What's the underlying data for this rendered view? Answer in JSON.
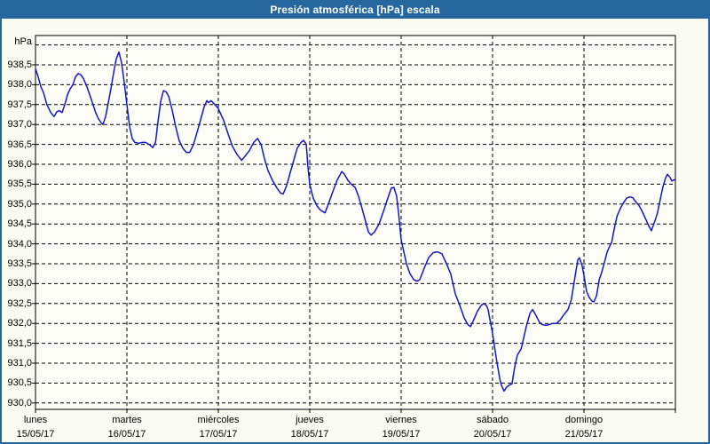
{
  "window": {
    "title": "Presión atmosférica [hPa] escala"
  },
  "colors": {
    "titlebar_bg": "#26689E",
    "titlebar_text": "#FFFFFF",
    "window_border": "#26689E",
    "page_bg": "#FAFBF2",
    "plot_bg": "#FDFDF8",
    "grid": "#000000",
    "axis_text": "#000000",
    "line": "#1717C2"
  },
  "chart_data": {
    "type": "line",
    "title": "Presión atmosférica [hPa] escala",
    "y_unit": "hPa",
    "xlabel": "",
    "ylabel": "hPa",
    "ylim": [
      930.0,
      939.0
    ],
    "y_tick_step": 0.5,
    "grid": true,
    "legend": false,
    "x_range_hours": [
      0,
      168
    ],
    "y_ticks": [
      {
        "v": 938.5,
        "label": "938,5"
      },
      {
        "v": 938.0,
        "label": "938,0"
      },
      {
        "v": 937.5,
        "label": "937,5"
      },
      {
        "v": 937.0,
        "label": "937,0"
      },
      {
        "v": 936.5,
        "label": "936,5"
      },
      {
        "v": 936.0,
        "label": "936,0"
      },
      {
        "v": 935.5,
        "label": "935,5"
      },
      {
        "v": 935.0,
        "label": "935,0"
      },
      {
        "v": 934.5,
        "label": "934,5"
      },
      {
        "v": 934.0,
        "label": "934,0"
      },
      {
        "v": 933.5,
        "label": "933,5"
      },
      {
        "v": 933.0,
        "label": "933,0"
      },
      {
        "v": 932.5,
        "label": "932,5"
      },
      {
        "v": 932.0,
        "label": "932,0"
      },
      {
        "v": 931.5,
        "label": "931,5"
      },
      {
        "v": 931.0,
        "label": "931,0"
      },
      {
        "v": 930.5,
        "label": "930,5"
      },
      {
        "v": 930.0,
        "label": "930,0"
      }
    ],
    "x_days": [
      {
        "name": "lunes",
        "date": "15/05/17"
      },
      {
        "name": "martes",
        "date": "16/05/17"
      },
      {
        "name": "miércoles",
        "date": "17/05/17"
      },
      {
        "name": "jueves",
        "date": "18/05/17"
      },
      {
        "name": "viernes",
        "date": "19/05/17"
      },
      {
        "name": "sábado",
        "date": "20/05/17"
      },
      {
        "name": "domingo",
        "date": "21/05/17"
      }
    ],
    "series": [
      {
        "name": "Presión atmosférica",
        "color": "#1717C2",
        "points": [
          [
            0,
            938.4
          ],
          [
            0.7,
            938.2
          ],
          [
            1.4,
            937.95
          ],
          [
            2.1,
            937.8
          ],
          [
            3,
            937.5
          ],
          [
            4,
            937.3
          ],
          [
            4.9,
            937.2
          ],
          [
            5.6,
            937.32
          ],
          [
            6.3,
            937.35
          ],
          [
            7,
            937.3
          ],
          [
            7.7,
            937.5
          ],
          [
            8.4,
            937.75
          ],
          [
            9.1,
            937.9
          ],
          [
            9.8,
            938.0
          ],
          [
            10.5,
            938.2
          ],
          [
            11.2,
            938.28
          ],
          [
            11.9,
            938.25
          ],
          [
            12.6,
            938.15
          ],
          [
            13.5,
            937.95
          ],
          [
            14.4,
            937.7
          ],
          [
            15.1,
            937.5
          ],
          [
            15.8,
            937.3
          ],
          [
            16.5,
            937.15
          ],
          [
            17.2,
            937.05
          ],
          [
            17.7,
            937.0
          ],
          [
            18.4,
            937.2
          ],
          [
            19.1,
            937.55
          ],
          [
            19.8,
            937.9
          ],
          [
            20.5,
            938.3
          ],
          [
            21.2,
            938.65
          ],
          [
            21.9,
            938.82
          ],
          [
            22.6,
            938.55
          ],
          [
            23.3,
            938.05
          ],
          [
            24,
            937.5
          ],
          [
            24.7,
            936.95
          ],
          [
            25.4,
            936.65
          ],
          [
            26.1,
            936.55
          ],
          [
            27,
            936.53
          ],
          [
            28,
            936.55
          ],
          [
            28.9,
            936.55
          ],
          [
            29.8,
            936.5
          ],
          [
            30.8,
            936.42
          ],
          [
            31.5,
            936.55
          ],
          [
            32.2,
            937.1
          ],
          [
            32.9,
            937.6
          ],
          [
            33.6,
            937.85
          ],
          [
            34.3,
            937.82
          ],
          [
            35,
            937.7
          ],
          [
            35.9,
            937.35
          ],
          [
            36.8,
            936.95
          ],
          [
            37.7,
            936.6
          ],
          [
            38.7,
            936.4
          ],
          [
            39.6,
            936.3
          ],
          [
            40.5,
            936.3
          ],
          [
            41.5,
            936.5
          ],
          [
            42.4,
            936.8
          ],
          [
            43.3,
            937.1
          ],
          [
            44.3,
            937.45
          ],
          [
            45,
            937.6
          ],
          [
            45.4,
            937.55
          ],
          [
            46.1,
            937.6
          ],
          [
            47.1,
            937.5
          ],
          [
            48,
            937.4
          ],
          [
            49.4,
            937.1
          ],
          [
            50.6,
            936.75
          ],
          [
            51.7,
            936.45
          ],
          [
            52.9,
            936.25
          ],
          [
            54.1,
            936.1
          ],
          [
            55,
            936.2
          ],
          [
            56.2,
            936.35
          ],
          [
            57.3,
            936.55
          ],
          [
            58.3,
            936.65
          ],
          [
            59.2,
            936.5
          ],
          [
            60.1,
            936.15
          ],
          [
            61,
            935.85
          ],
          [
            62.2,
            935.6
          ],
          [
            63.4,
            935.4
          ],
          [
            64.3,
            935.28
          ],
          [
            65,
            935.25
          ],
          [
            65.9,
            935.45
          ],
          [
            66.9,
            935.8
          ],
          [
            67.8,
            936.1
          ],
          [
            68.7,
            936.4
          ],
          [
            69.7,
            936.55
          ],
          [
            70.4,
            936.6
          ],
          [
            71.1,
            936.5
          ],
          [
            71.5,
            935.95
          ],
          [
            72,
            935.5
          ],
          [
            72.9,
            935.15
          ],
          [
            73.9,
            934.95
          ],
          [
            74.8,
            934.85
          ],
          [
            76,
            934.78
          ],
          [
            76.9,
            935.0
          ],
          [
            78,
            935.3
          ],
          [
            79.2,
            935.6
          ],
          [
            80.4,
            935.82
          ],
          [
            81.1,
            935.75
          ],
          [
            82,
            935.6
          ],
          [
            82.9,
            935.5
          ],
          [
            83.9,
            935.42
          ],
          [
            84.8,
            935.2
          ],
          [
            85.7,
            934.9
          ],
          [
            86.7,
            934.55
          ],
          [
            87.4,
            934.3
          ],
          [
            88.1,
            934.22
          ],
          [
            89,
            934.3
          ],
          [
            90.2,
            934.5
          ],
          [
            91.3,
            934.8
          ],
          [
            92.5,
            935.15
          ],
          [
            93.4,
            935.4
          ],
          [
            94.1,
            935.42
          ],
          [
            94.8,
            935.2
          ],
          [
            95.5,
            934.6
          ],
          [
            96,
            934.1
          ],
          [
            96.7,
            933.8
          ],
          [
            97.4,
            933.5
          ],
          [
            98.3,
            933.25
          ],
          [
            99.3,
            933.1
          ],
          [
            100.2,
            933.06
          ],
          [
            100.9,
            933.1
          ],
          [
            102.1,
            933.4
          ],
          [
            103.2,
            933.65
          ],
          [
            104.4,
            933.78
          ],
          [
            105.5,
            933.8
          ],
          [
            106.7,
            933.75
          ],
          [
            107.9,
            933.5
          ],
          [
            109,
            933.25
          ],
          [
            110.2,
            932.75
          ],
          [
            111.4,
            932.45
          ],
          [
            112.5,
            932.15
          ],
          [
            113.5,
            931.97
          ],
          [
            114.2,
            931.92
          ],
          [
            115.1,
            932.1
          ],
          [
            116,
            932.3
          ],
          [
            117,
            932.45
          ],
          [
            117.7,
            932.5
          ],
          [
            118.4,
            932.45
          ],
          [
            118.8,
            932.35
          ],
          [
            119.5,
            932.0
          ],
          [
            120,
            931.75
          ],
          [
            120.7,
            931.3
          ],
          [
            121.2,
            931.0
          ],
          [
            121.9,
            930.6
          ],
          [
            122.3,
            930.45
          ],
          [
            123,
            930.3
          ],
          [
            123.7,
            930.4
          ],
          [
            124.4,
            930.45
          ],
          [
            125.1,
            930.48
          ],
          [
            125.8,
            930.9
          ],
          [
            126.5,
            931.2
          ],
          [
            127.5,
            931.36
          ],
          [
            128.2,
            931.65
          ],
          [
            128.9,
            931.94
          ],
          [
            129.8,
            932.25
          ],
          [
            130.5,
            932.35
          ],
          [
            131.4,
            932.2
          ],
          [
            132.3,
            932.03
          ],
          [
            133,
            931.97
          ],
          [
            134,
            931.95
          ],
          [
            134.9,
            931.97
          ],
          [
            135.8,
            932.0
          ],
          [
            136.8,
            932.0
          ],
          [
            137.7,
            932.08
          ],
          [
            138.6,
            932.2
          ],
          [
            139.8,
            932.35
          ],
          [
            140.7,
            932.6
          ],
          [
            141.7,
            933.2
          ],
          [
            142.4,
            933.6
          ],
          [
            142.8,
            933.65
          ],
          [
            143.5,
            933.45
          ],
          [
            144,
            933.2
          ],
          [
            144.7,
            932.8
          ],
          [
            145.4,
            932.65
          ],
          [
            146.1,
            932.56
          ],
          [
            146.6,
            932.54
          ],
          [
            147.3,
            932.7
          ],
          [
            148,
            933.1
          ],
          [
            148.7,
            933.3
          ],
          [
            149.4,
            933.55
          ],
          [
            150.1,
            933.8
          ],
          [
            150.8,
            933.95
          ],
          [
            151.3,
            934.05
          ],
          [
            152,
            934.4
          ],
          [
            152.7,
            934.7
          ],
          [
            153.6,
            934.9
          ],
          [
            154.3,
            935.02
          ],
          [
            155.2,
            935.15
          ],
          [
            156.1,
            935.18
          ],
          [
            156.8,
            935.16
          ],
          [
            157.5,
            935.07
          ],
          [
            158.4,
            934.97
          ],
          [
            159.1,
            934.85
          ],
          [
            160.3,
            934.6
          ],
          [
            161,
            934.45
          ],
          [
            161.7,
            934.33
          ],
          [
            162.7,
            934.6
          ],
          [
            163.3,
            934.78
          ],
          [
            164,
            935.1
          ],
          [
            164.7,
            935.42
          ],
          [
            165.4,
            935.65
          ],
          [
            165.9,
            935.75
          ],
          [
            166.6,
            935.67
          ],
          [
            167.1,
            935.58
          ],
          [
            167.5,
            935.6
          ],
          [
            168,
            935.62
          ]
        ]
      }
    ]
  }
}
